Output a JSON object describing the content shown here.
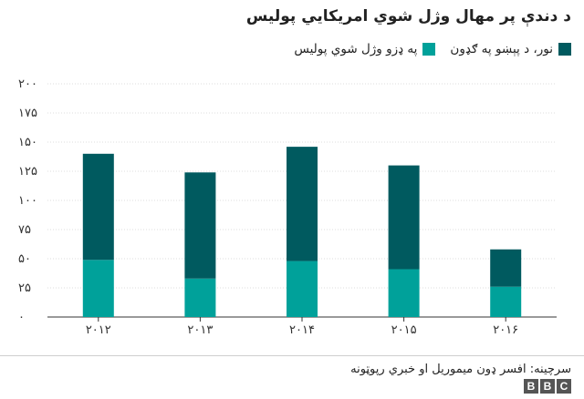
{
  "chart_data": {
    "type": "bar",
    "stacked": true,
    "title": "د دندې پر مهال وژل شوي امریکایي پولیس",
    "categories": [
      "۲۰۱۲",
      "۲۰۱۳",
      "۲۰۱۴",
      "۲۰۱۵",
      "۲۰۱۶"
    ],
    "series": [
      {
        "name": "په ډزو وژل شوي پولیس",
        "color": "#00a19a",
        "values": [
          49,
          33,
          48,
          41,
          26
        ]
      },
      {
        "name": "نور، د پېښو په ګډون",
        "color": "#005a5f",
        "values": [
          91,
          91,
          98,
          89,
          32
        ]
      }
    ],
    "ylim": [
      0,
      200
    ],
    "yticks": [
      "۰",
      "۲۵",
      "۵۰",
      "۷۵",
      "۱۰۰",
      "۱۲۵",
      "۱۵۰",
      "۱۷۵",
      "۲۰۰"
    ],
    "grid": true,
    "legend_position": "top-right"
  },
  "source": "سرچینه: افسر ډون میموریل او خبري رپوټونه",
  "brand": {
    "letters": [
      "B",
      "B",
      "C"
    ]
  }
}
